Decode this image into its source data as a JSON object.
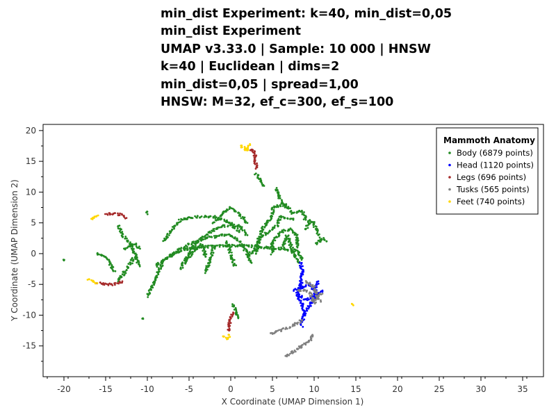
{
  "chart_data": {
    "type": "scatter",
    "title_lines": [
      "min_dist Experiment: k=40, min_dist=0,05",
      "min_dist Experiment",
      "UMAP v3.33.0 | Sample: 10 000 | HNSW",
      "k=40 | Euclidean | dims=2",
      "min_dist=0,05 | spread=1,00",
      "HNSW: M=32, ef_c=300, ef_s=100"
    ],
    "xlabel": "X Coordinate (UMAP Dimension 1)",
    "ylabel": "Y Coordinate (UMAP Dimension 2)",
    "xlim": [
      -22.5,
      37.5
    ],
    "ylim": [
      -20,
      21
    ],
    "x_ticks": [
      -20,
      -15,
      -10,
      -5,
      0,
      5,
      10,
      15,
      20,
      25,
      30,
      35
    ],
    "y_ticks": [
      -15,
      -10,
      -5,
      0,
      5,
      10,
      15,
      20
    ],
    "legend": {
      "title": "Mammoth Anatomy",
      "placement": "top-right",
      "entries": [
        {
          "label": "Body (6879 points)",
          "color": "#228B22"
        },
        {
          "label": "Head (1120 points)",
          "color": "#0000FF"
        },
        {
          "label": "Legs (696 points)",
          "color": "#A52A2A"
        },
        {
          "label": "Tusks (565 points)",
          "color": "#808080"
        },
        {
          "label": "Feet (740 points)",
          "color": "#FFD700"
        }
      ]
    },
    "series": [
      {
        "name": "Body",
        "color": "#228B22",
        "paths": [
          [
            [
              -10,
              -7
            ],
            [
              -9,
              -4
            ],
            [
              -8,
              -1
            ],
            [
              -6,
              0.5
            ],
            [
              -4,
              1
            ],
            [
              -2,
              1.2
            ],
            [
              0,
              1.3
            ],
            [
              2,
              1.3
            ],
            [
              4,
              1
            ],
            [
              6,
              0.8
            ],
            [
              8,
              0.5
            ],
            [
              8.5,
              -1
            ]
          ],
          [
            [
              -9,
              -2
            ],
            [
              -7,
              0
            ],
            [
              -5,
              1.5
            ],
            [
              -3,
              2.5
            ],
            [
              -1,
              3
            ],
            [
              0,
              3
            ],
            [
              1,
              2
            ],
            [
              2,
              0
            ],
            [
              2.5,
              -1.5
            ]
          ],
          [
            [
              -6,
              -2.5
            ],
            [
              -5,
              0
            ],
            [
              -4,
              2
            ],
            [
              -2.5,
              3.5
            ],
            [
              -1,
              4.5
            ],
            [
              1,
              4.5
            ],
            [
              2,
              3
            ]
          ],
          [
            [
              -8,
              2
            ],
            [
              -7,
              4
            ],
            [
              -6,
              5.5
            ],
            [
              -4,
              6
            ],
            [
              -2,
              6
            ],
            [
              -1,
              5.5
            ],
            [
              0,
              5
            ],
            [
              1,
              3.5
            ]
          ],
          [
            [
              -3,
              -3
            ],
            [
              -2.5,
              -1
            ],
            [
              -2,
              1
            ]
          ],
          [
            [
              0.5,
              -2
            ],
            [
              0,
              0
            ],
            [
              -0.5,
              2
            ]
          ],
          [
            [
              -5.5,
              -1.5
            ],
            [
              -4.5,
              0.5
            ],
            [
              -3.5,
              1.5
            ],
            [
              -3,
              -0.5
            ]
          ],
          [
            [
              -2,
              5
            ],
            [
              -1,
              6.5
            ],
            [
              0,
              7.5
            ],
            [
              1,
              6.5
            ],
            [
              2,
              5
            ]
          ],
          [
            [
              2,
              -0.5
            ],
            [
              3,
              1
            ],
            [
              3.5,
              3
            ],
            [
              4,
              4.5
            ],
            [
              5,
              6
            ],
            [
              5,
              7.5
            ],
            [
              6.5,
              8
            ],
            [
              7.5,
              6.5
            ],
            [
              8.5,
              7
            ],
            [
              9,
              5.5
            ]
          ],
          [
            [
              3,
              0
            ],
            [
              3.5,
              2.5
            ],
            [
              4.5,
              3.5
            ],
            [
              5.5,
              4.5
            ],
            [
              6,
              6
            ],
            [
              7.5,
              5.5
            ]
          ],
          [
            [
              5,
              0
            ],
            [
              5,
              2
            ],
            [
              6,
              3.5
            ],
            [
              7,
              4
            ],
            [
              8,
              3
            ],
            [
              8,
              1
            ]
          ],
          [
            [
              6.2,
              1
            ],
            [
              6.8,
              3
            ],
            [
              7.5,
              0
            ],
            [
              8.2,
              -1.5
            ]
          ],
          [
            [
              9,
              4
            ],
            [
              9.5,
              5.5
            ],
            [
              10,
              4.8
            ],
            [
              10.5,
              3
            ]
          ],
          [
            [
              10.3,
              1.5
            ],
            [
              10.8,
              2.5
            ],
            [
              11.5,
              2
            ]
          ],
          [
            [
              3,
              13
            ],
            [
              3.5,
              12
            ],
            [
              4,
              11
            ]
          ],
          [
            [
              5.5,
              10.5
            ],
            [
              6,
              8.5
            ],
            [
              6.5,
              7.5
            ]
          ],
          [
            [
              -11,
              -2
            ],
            [
              -11.5,
              0
            ],
            [
              -12,
              1.5
            ],
            [
              -13,
              3
            ],
            [
              -13.5,
              4.5
            ]
          ],
          [
            [
              -11,
              0.8
            ],
            [
              -11.5,
              1.5
            ],
            [
              -12.8,
              0.8
            ]
          ],
          [
            [
              -14,
              -3
            ],
            [
              -14.5,
              -1.5
            ],
            [
              -15,
              -0.5
            ],
            [
              -16,
              0
            ]
          ],
          [
            [
              -11.5,
              -0.5
            ],
            [
              -12,
              -1.5
            ],
            [
              -12.5,
              -2.5
            ],
            [
              -13,
              -3.5
            ],
            [
              -13.5,
              -4.5
            ]
          ],
          [
            [
              0.3,
              -8.3
            ],
            [
              0.6,
              -9.5
            ],
            [
              0.9,
              -10.5
            ]
          ],
          [
            [
              -10,
              6.5
            ],
            [
              -10,
              6.8
            ]
          ],
          [
            [
              -20,
              -1
            ],
            [
              -20,
              -1.1
            ]
          ],
          [
            [
              -10.5,
              -10.5
            ],
            [
              -10.5,
              -10.6
            ]
          ]
        ]
      },
      {
        "name": "Head",
        "color": "#0000FF",
        "paths": [
          [
            [
              8.4,
              -1.5
            ],
            [
              8.6,
              -3
            ],
            [
              8.4,
              -5
            ],
            [
              8,
              -7
            ],
            [
              8.5,
              -8
            ],
            [
              8.8,
              -9.8
            ]
          ],
          [
            [
              7.5,
              -6
            ],
            [
              8.5,
              -5.5
            ],
            [
              9.5,
              -5
            ],
            [
              10,
              -6
            ]
          ],
          [
            [
              8.5,
              -11.8
            ],
            [
              8.8,
              -9.8
            ],
            [
              9.5,
              -8.3
            ],
            [
              10,
              -7.5
            ],
            [
              10.2,
              -5.5
            ],
            [
              10.5,
              -4.5
            ]
          ],
          [
            [
              8,
              -6.5
            ],
            [
              9,
              -7.5
            ],
            [
              10,
              -7
            ],
            [
              11,
              -6
            ]
          ]
        ]
      },
      {
        "name": "Legs",
        "color": "#A52A2A",
        "paths": [
          [
            [
              -15,
              6.4
            ],
            [
              -14,
              6.5
            ],
            [
              -13,
              6.3
            ],
            [
              -12.5,
              5.8
            ]
          ],
          [
            [
              -16,
              -4.8
            ],
            [
              -15,
              -5
            ],
            [
              -14,
              -5
            ],
            [
              -13,
              -4.5
            ]
          ],
          [
            [
              0.3,
              -9.5
            ],
            [
              0,
              -10.5
            ],
            [
              -0.3,
              -12
            ],
            [
              -0.2,
              -12.5
            ]
          ],
          [
            [
              2.3,
              17
            ],
            [
              2.8,
              16.5
            ],
            [
              3,
              15
            ],
            [
              3,
              13.8
            ]
          ]
        ]
      },
      {
        "name": "Tusks",
        "color": "#808080",
        "paths": [
          [
            [
              4.8,
              -13
            ],
            [
              6,
              -12.5
            ],
            [
              7,
              -12
            ],
            [
              8,
              -11.3
            ],
            [
              8.5,
              -10.8
            ]
          ],
          [
            [
              6.5,
              -16.6
            ],
            [
              7.5,
              -16
            ],
            [
              8.5,
              -15
            ],
            [
              9.5,
              -14
            ],
            [
              9.8,
              -13.2
            ]
          ],
          [
            [
              8,
              -6
            ],
            [
              9,
              -6
            ],
            [
              9.5,
              -6.5
            ],
            [
              10,
              -8
            ],
            [
              10.5,
              -7
            ],
            [
              11,
              -6.5
            ]
          ],
          [
            [
              9,
              -4.5
            ],
            [
              10,
              -5.5
            ],
            [
              10.3,
              -6.8
            ],
            [
              10.8,
              -7.8
            ]
          ]
        ]
      },
      {
        "name": "Feet",
        "color": "#FFD700",
        "paths": [
          [
            [
              -16.8,
              5.6
            ],
            [
              -16.3,
              5.9
            ],
            [
              -15.9,
              6.2
            ]
          ],
          [
            [
              -17,
              -4.2
            ],
            [
              -16.5,
              -4.5
            ],
            [
              -16,
              -4.8
            ]
          ],
          [
            [
              -0.8,
              -13.4
            ],
            [
              -0.4,
              -13.8
            ],
            [
              -0.2,
              -13.2
            ]
          ],
          [
            [
              1.2,
              17.5
            ],
            [
              1.8,
              17
            ],
            [
              2,
              16.8
            ],
            [
              2.3,
              17.8
            ]
          ],
          [
            [
              14.7,
              -8.3
            ],
            [
              14.7,
              -8.4
            ]
          ]
        ]
      }
    ]
  }
}
